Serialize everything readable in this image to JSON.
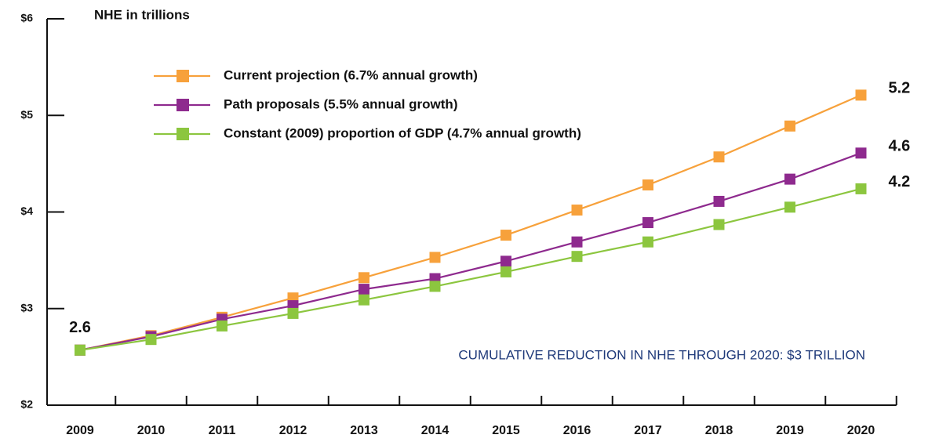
{
  "chart_data": {
    "type": "line",
    "y_axis_label": "NHE in trillions",
    "annotation": "CUMULATIVE REDUCTION IN NHE THROUGH 2020: $3 TRILLION",
    "categories": [
      "2009",
      "2010",
      "2011",
      "2012",
      "2013",
      "2014",
      "2015",
      "2016",
      "2017",
      "2018",
      "2019",
      "2020"
    ],
    "ylim": [
      2,
      6
    ],
    "yticks": [
      {
        "value": 2,
        "label": "$2"
      },
      {
        "value": 3,
        "label": "$3"
      },
      {
        "value": 4,
        "label": "$4"
      },
      {
        "value": 5,
        "label": "$5"
      },
      {
        "value": 6,
        "label": "$6"
      }
    ],
    "series": [
      {
        "name": "Current projection (6.7% annual growth)",
        "color": "#f7a13b",
        "values": [
          2.57,
          2.72,
          2.91,
          3.11,
          3.32,
          3.53,
          3.76,
          4.02,
          4.28,
          4.57,
          4.89,
          5.21
        ],
        "value_labels": [
          "2.6",
          null,
          null,
          null,
          null,
          null,
          null,
          null,
          null,
          null,
          null,
          "5.2"
        ]
      },
      {
        "name": "Path proposals (5.5% annual growth)",
        "color": "#8e2a8e",
        "values": [
          2.57,
          2.71,
          2.89,
          3.03,
          3.2,
          3.31,
          3.49,
          3.69,
          3.89,
          4.11,
          4.34,
          4.61
        ],
        "value_labels": [
          null,
          null,
          null,
          null,
          null,
          null,
          null,
          null,
          null,
          null,
          null,
          "4.6"
        ]
      },
      {
        "name": "Constant (2009) proportion of GDP (4.7% annual growth)",
        "color": "#8cc63f",
        "values": [
          2.57,
          2.68,
          2.82,
          2.95,
          3.09,
          3.23,
          3.38,
          3.54,
          3.69,
          3.87,
          4.05,
          4.24
        ],
        "value_labels": [
          null,
          null,
          null,
          null,
          null,
          null,
          null,
          null,
          null,
          null,
          null,
          "4.2"
        ]
      }
    ]
  }
}
